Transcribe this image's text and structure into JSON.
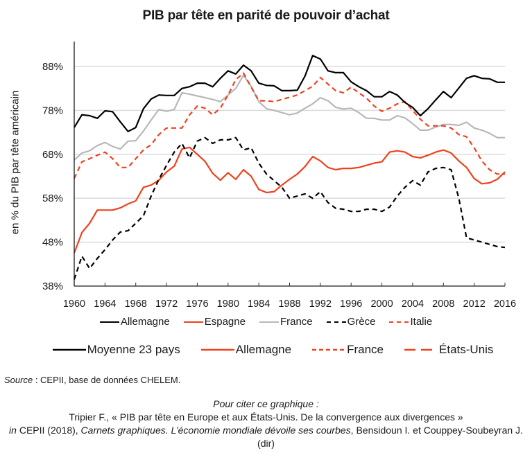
{
  "title": "PIB par tête en parité de pouvoir d’achat",
  "ylabel": "en % du PIB par tête américain",
  "legend_primary": [
    {
      "label": "Allemagne",
      "color": "#000000",
      "style": "solid"
    },
    {
      "label": "Espagne",
      "color": "#f0401c",
      "style": "solid"
    },
    {
      "label": "France",
      "color": "#b8b8b8",
      "style": "solid"
    },
    {
      "label": "Grèce",
      "color": "#000000",
      "style": "dashed"
    },
    {
      "label": "Italie",
      "color": "#f0401c",
      "style": "dashed"
    }
  ],
  "legend_secondary": [
    {
      "label": "Moyenne 23 pays",
      "color": "#000000",
      "style": "solid"
    },
    {
      "label": "Allemagne",
      "color": "#f0401c",
      "style": "solid"
    },
    {
      "label": "France",
      "color": "#f0401c",
      "style": "dotted"
    },
    {
      "label": "États-Unis",
      "color": "#f0401c",
      "style": "longdash"
    }
  ],
  "source": {
    "label": "Source",
    "text": " : CEPII, base de données CHELEM."
  },
  "citation": {
    "line1": "Pour citer ce graphique :",
    "line2": "Tripier F., « PIB par tête en Europe et aux États-Unis. De la convergence aux divergences »",
    "line3_in": "in",
    "line3_a": " CEPII (2018), ",
    "line3_title": "Carnets graphiques. L’économie mondiale dévoile ses courbes",
    "line3_b": ", Bensidoun I. et Couppey-Soubeyran J. (dir)"
  },
  "chart_data": {
    "type": "line",
    "title": "PIB par tête en parité de pouvoir d’achat",
    "xlabel": "",
    "ylabel": "en % du PIB par tête américain",
    "xlim": [
      1960,
      2016
    ],
    "ylim": [
      38,
      92
    ],
    "x_ticks": [
      1960,
      1964,
      1968,
      1972,
      1976,
      1980,
      1984,
      1988,
      1992,
      1996,
      2000,
      2004,
      2008,
      2012,
      2016
    ],
    "y_ticks": [
      38,
      48,
      58,
      68,
      78,
      88
    ],
    "y_tick_labels": [
      "38%",
      "48%",
      "58%",
      "68%",
      "78%",
      "88%"
    ],
    "grid": "horizontal",
    "legend_placement": "bottom",
    "x": [
      1960,
      1961,
      1962,
      1963,
      1964,
      1965,
      1966,
      1967,
      1968,
      1969,
      1970,
      1971,
      1972,
      1973,
      1974,
      1975,
      1976,
      1977,
      1978,
      1979,
      1980,
      1981,
      1982,
      1983,
      1984,
      1985,
      1986,
      1987,
      1988,
      1989,
      1990,
      1991,
      1992,
      1993,
      1994,
      1995,
      1996,
      1997,
      1998,
      1999,
      2000,
      2001,
      2002,
      2003,
      2004,
      2005,
      2006,
      2007,
      2008,
      2009,
      2010,
      2011,
      2012,
      2013,
      2014,
      2015,
      2016
    ],
    "series": [
      {
        "name": "Allemagne",
        "color": "#000000",
        "style": "solid",
        "values": [
          74.1,
          77.0,
          76.8,
          76.2,
          77.9,
          77.7,
          75.4,
          73.2,
          74.1,
          78.4,
          80.6,
          81.5,
          81.4,
          81.4,
          83.0,
          83.4,
          84.2,
          84.2,
          83.4,
          85.3,
          87.0,
          86.3,
          88.3,
          87.0,
          84.2,
          83.7,
          83.6,
          82.5,
          82.5,
          82.6,
          85.8,
          90.5,
          89.7,
          87.0,
          86.6,
          86.6,
          84.5,
          83.4,
          82.5,
          81.1,
          81.1,
          82.3,
          81.5,
          79.8,
          78.7,
          76.8,
          78.4,
          80.4,
          82.3,
          80.9,
          83.1,
          85.3,
          85.9,
          85.3,
          85.2,
          84.4,
          84.4
        ]
      },
      {
        "name": "Espagne",
        "color": "#f0401c",
        "style": "solid",
        "values": [
          45.5,
          50.2,
          52.3,
          55.3,
          55.3,
          55.3,
          55.8,
          56.7,
          57.4,
          60.5,
          61.0,
          62.1,
          64.0,
          65.3,
          69.2,
          69.6,
          68.0,
          66.4,
          63.7,
          62.1,
          63.8,
          62.3,
          64.5,
          63.0,
          60.0,
          59.3,
          59.5,
          61.0,
          62.3,
          63.5,
          65.2,
          67.5,
          66.5,
          65.0,
          64.5,
          64.8,
          64.8,
          65.0,
          65.5,
          66.0,
          66.3,
          68.5,
          68.8,
          68.5,
          67.5,
          67.2,
          67.8,
          68.5,
          69.0,
          68.3,
          66.5,
          65.0,
          62.5,
          61.3,
          61.5,
          62.3,
          64.0
        ]
      },
      {
        "name": "France",
        "color": "#b8b8b8",
        "style": "solid",
        "values": [
          66.7,
          68.3,
          68.8,
          70.0,
          70.7,
          69.8,
          69.2,
          71.0,
          71.1,
          73.3,
          75.8,
          78.2,
          77.8,
          78.2,
          82.0,
          81.7,
          81.3,
          80.9,
          80.5,
          80.0,
          81.5,
          83.0,
          86.0,
          83.5,
          80.0,
          78.4,
          78.0,
          77.5,
          77.0,
          77.4,
          78.5,
          79.5,
          80.9,
          80.2,
          78.7,
          78.3,
          78.5,
          77.5,
          76.2,
          76.2,
          75.8,
          75.8,
          76.8,
          76.3,
          75.0,
          73.5,
          73.5,
          74.2,
          74.8,
          74.8,
          74.6,
          75.3,
          74.0,
          73.5,
          72.8,
          71.8,
          71.8
        ]
      },
      {
        "name": "Grèce",
        "color": "#000000",
        "style": "dashed",
        "values": [
          39.5,
          44.8,
          42.0,
          44.3,
          46.3,
          48.5,
          50.3,
          50.6,
          52.3,
          54.0,
          58.5,
          62.3,
          65.5,
          68.5,
          70.5,
          67.2,
          71.0,
          71.8,
          70.5,
          71.3,
          71.3,
          71.8,
          69.0,
          69.5,
          66.0,
          63.5,
          62.0,
          60.5,
          58.0,
          58.5,
          59.0,
          58.0,
          59.5,
          57.0,
          55.7,
          55.5,
          55.0,
          55.0,
          55.5,
          55.5,
          55.0,
          56.0,
          58.5,
          60.5,
          62.0,
          61.0,
          64.0,
          64.8,
          65.0,
          64.5,
          58.0,
          49.0,
          48.5,
          48.0,
          47.5,
          47.0,
          46.8
        ]
      },
      {
        "name": "Italie",
        "color": "#f0401c",
        "style": "dashed",
        "values": [
          62.5,
          66.3,
          67.0,
          67.8,
          68.5,
          67.0,
          65.0,
          65.0,
          67.0,
          69.0,
          70.2,
          72.5,
          74.0,
          74.0,
          74.0,
          77.0,
          79.0,
          78.5,
          77.0,
          78.5,
          81.5,
          85.0,
          86.5,
          83.3,
          80.2,
          80.2,
          80.0,
          80.5,
          81.0,
          81.5,
          82.5,
          83.5,
          85.5,
          84.0,
          82.5,
          82.0,
          83.3,
          82.0,
          80.8,
          79.0,
          77.8,
          78.5,
          79.5,
          80.0,
          78.0,
          76.0,
          74.5,
          74.5,
          74.5,
          74.0,
          72.5,
          72.0,
          69.5,
          66.5,
          64.5,
          63.5,
          63.5
        ]
      }
    ]
  }
}
